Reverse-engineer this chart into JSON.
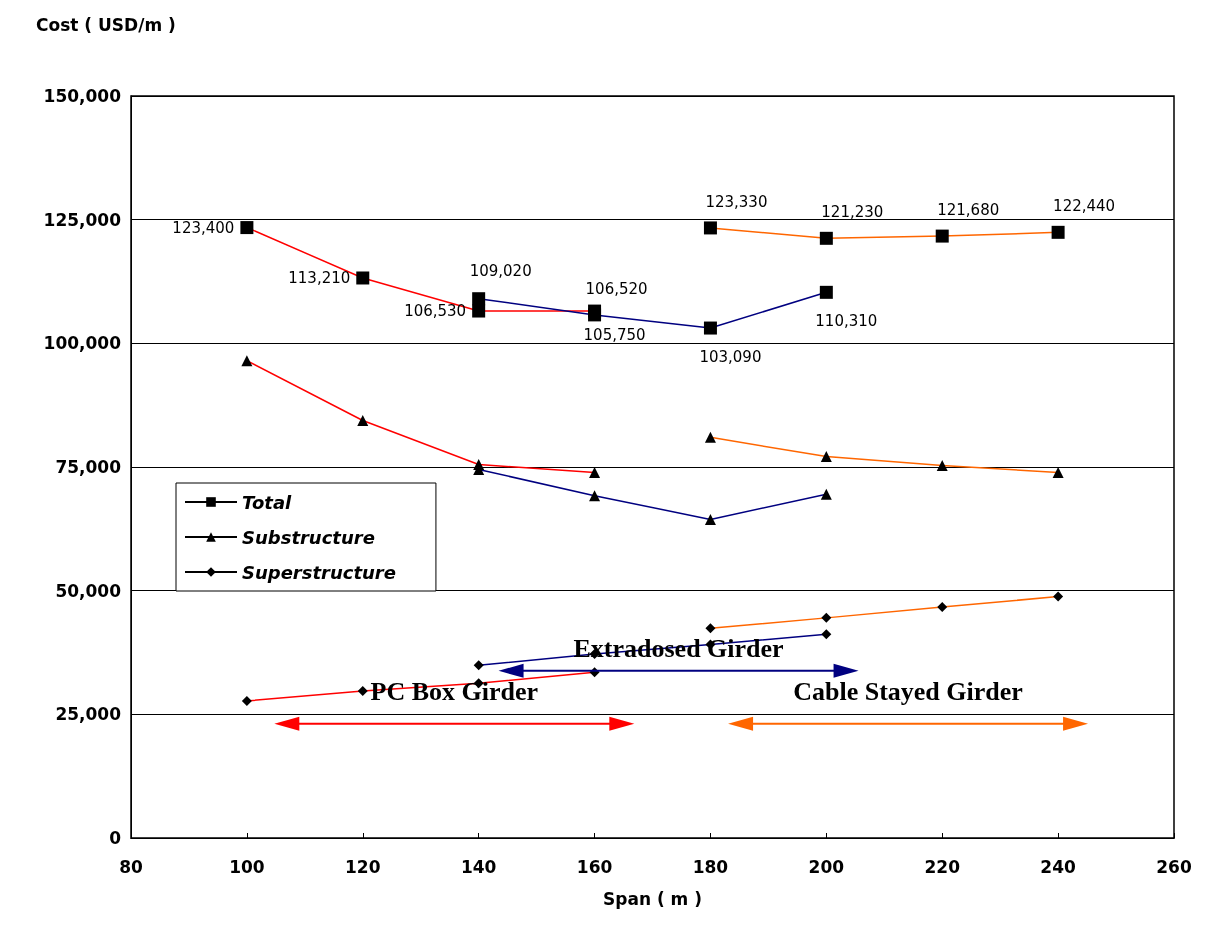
{
  "chart_data": {
    "type": "line",
    "ylabel": "Cost ( USD/m )",
    "xlabel": "Span ( m )",
    "xlim": [
      80,
      260
    ],
    "xticks": [
      80,
      100,
      120,
      140,
      160,
      180,
      200,
      220,
      240,
      260
    ],
    "ylim": [
      0,
      150000
    ],
    "yticks": [
      {
        "value": 0,
        "label": "0"
      },
      {
        "value": 25000,
        "label": "25,000"
      },
      {
        "value": 50000,
        "label": "50,000"
      },
      {
        "value": 75000,
        "label": "75,000"
      },
      {
        "value": 100000,
        "label": "100,000"
      },
      {
        "value": 125000,
        "label": "125,000"
      },
      {
        "value": 150000,
        "label": "150,000"
      }
    ],
    "grid": "y",
    "legend": "left",
    "line_style": "solid",
    "series": [
      {
        "color": "#ff0000",
        "marker": "square",
        "x": [
          100,
          120,
          140,
          160
        ],
        "values": [
          123400,
          113210,
          106530,
          106520
        ],
        "value_labels": [
          "123,400",
          "113,210",
          "106,530",
          "106,520"
        ]
      },
      {
        "color": "#ff0000",
        "marker": "triangle",
        "x": [
          100,
          120,
          140,
          160
        ],
        "values": [
          96500,
          84400,
          75500,
          73900
        ]
      },
      {
        "color": "#ff0000",
        "marker": "diamond",
        "x": [
          100,
          120,
          140,
          160
        ],
        "values": [
          27700,
          29700,
          31300,
          33500
        ]
      },
      {
        "color": "#000080",
        "marker": "square",
        "x": [
          140,
          160,
          180,
          200
        ],
        "values": [
          109020,
          105750,
          103090,
          110310
        ],
        "value_labels": [
          "109,020",
          "105,750",
          "103,090",
          "110,310"
        ]
      },
      {
        "color": "#000080",
        "marker": "triangle",
        "x": [
          140,
          160,
          180,
          200
        ],
        "values": [
          74500,
          69200,
          64400,
          69500
        ]
      },
      {
        "color": "#000080",
        "marker": "diamond",
        "x": [
          140,
          160,
          180,
          200
        ],
        "values": [
          34900,
          37200,
          39100,
          41200
        ]
      },
      {
        "color": "#ff6600",
        "marker": "square",
        "x": [
          180,
          200,
          220,
          240
        ],
        "values": [
          123330,
          121230,
          121680,
          122440
        ],
        "value_labels": [
          "123,330",
          "121,230",
          "121,680",
          "122,440"
        ]
      },
      {
        "color": "#ff6600",
        "marker": "triangle",
        "x": [
          180,
          200,
          220,
          240
        ],
        "values": [
          81000,
          77100,
          75300,
          73900
        ]
      },
      {
        "color": "#ff6600",
        "marker": "diamond",
        "x": [
          180,
          200,
          220,
          240
        ],
        "values": [
          42400,
          44500,
          46700,
          48800
        ]
      },
      {
        "name": "Total",
        "color": "#000000",
        "marker": "square"
      },
      {
        "name": "Substructure",
        "color": "#000000",
        "marker": "triangle"
      },
      {
        "name": "Superstructure",
        "color": "#000000",
        "marker": "diamond"
      }
    ],
    "annotations": [
      "PC Box Girder",
      "Extradosed Girder",
      "Cable Stayed Girder"
    ]
  }
}
